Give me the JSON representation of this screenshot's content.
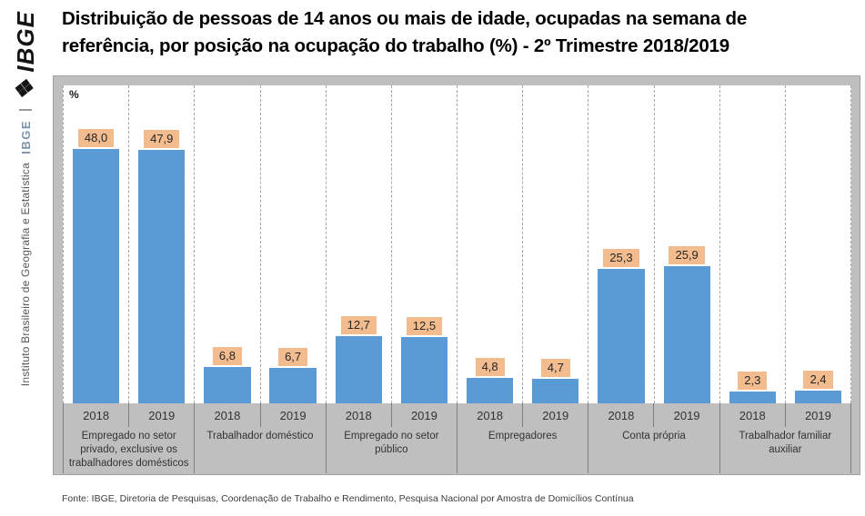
{
  "branding": {
    "logo_text": "❖IBGE",
    "org_acronym": "IBGE",
    "org_name": "Instituto Brasileiro de Geografia e Estatística"
  },
  "title": {
    "line1": "Distribuição de pessoas de 14 anos ou mais de idade, ocupadas na semana de",
    "line2": "referência, por posição na ocupação do trabalho (%) -  2º Trimestre 2018/2019"
  },
  "chart_data": {
    "type": "bar",
    "title": "Distribuição de pessoas de 14 anos ou mais de idade, ocupadas na semana de referência, por posição na ocupação do trabalho (%) - 2º Trimestre 2018/2019",
    "unit_label": "%",
    "ylabel": "%",
    "xlabel": "",
    "ylim": [
      0,
      60
    ],
    "grid": "vertical-dashed-per-bar",
    "legend_position": "none",
    "bar_color": "#5b9bd5",
    "label_bg_color": "#f2bc8f",
    "series_years": [
      "2018",
      "2019"
    ],
    "categories": [
      "Empregado no setor privado, exclusive os trabalhadores domésticos",
      "Trabalhador doméstico",
      "Empregado no setor público",
      "Empregadores",
      "Conta própria",
      "Trabalhador familiar auxiliar"
    ],
    "groups": [
      {
        "category": "Empregado no setor privado, exclusive os trabalhadores domésticos",
        "values": [
          48.0,
          47.9
        ],
        "labels": [
          "48,0",
          "47,9"
        ]
      },
      {
        "category": "Trabalhador doméstico",
        "values": [
          6.8,
          6.7
        ],
        "labels": [
          "6,8",
          "6,7"
        ]
      },
      {
        "category": "Empregado no setor público",
        "values": [
          12.7,
          12.5
        ],
        "labels": [
          "12,7",
          "12,5"
        ]
      },
      {
        "category": "Empregadores",
        "values": [
          4.8,
          4.7
        ],
        "labels": [
          "4,8",
          "4,7"
        ]
      },
      {
        "category": "Conta própria",
        "values": [
          25.3,
          25.9
        ],
        "labels": [
          "25,3",
          "25,9"
        ]
      },
      {
        "category": "Trabalhador familiar auxiliar",
        "values": [
          2.3,
          2.4
        ],
        "labels": [
          "2,3",
          "2,4"
        ]
      }
    ]
  },
  "footer": {
    "source": "Fonte: IBGE, Diretoria de Pesquisas, Coordenação de Trabalho e Rendimento, Pesquisa Nacional por Amostra de Domicílios Contínua"
  }
}
